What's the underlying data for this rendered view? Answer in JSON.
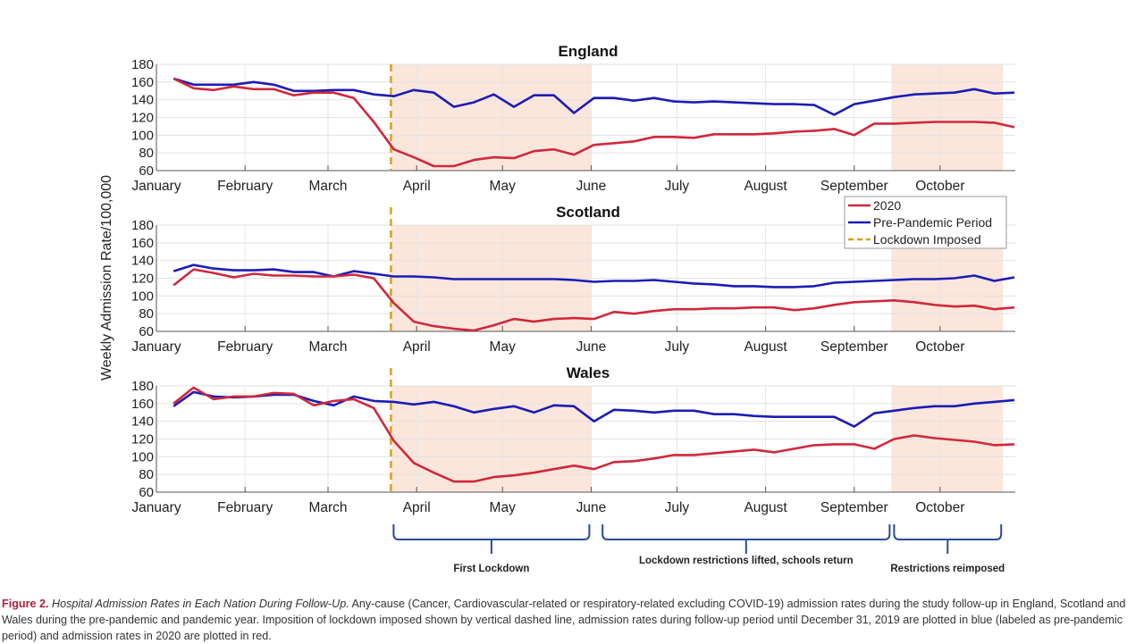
{
  "chart_data": {
    "type": "line",
    "ylabel": "Weekly Admission Rate/100,000",
    "x_tick_labels": [
      "January",
      "February",
      "March",
      "April",
      "May",
      "June",
      "July",
      "August",
      "September",
      "October"
    ],
    "x_tick_dates": [
      "2020-01-01",
      "2020-02-01",
      "2020-03-01",
      "2020-04-01",
      "2020-05-01",
      "2020-06-01",
      "2020-07-01",
      "2020-08-01",
      "2020-09-01",
      "2020-10-01"
    ],
    "xlim": [
      "2020-01-01",
      "2020-10-31"
    ],
    "ylim": [
      60,
      180
    ],
    "y_ticks": [
      60,
      80,
      100,
      120,
      140,
      160,
      180
    ],
    "grid": true,
    "legend": {
      "placement": "between England and Scotland panels, right",
      "entries": [
        "2020",
        "Pre-Pandemic Period",
        "Lockdown Imposed"
      ]
    },
    "colors": {
      "2020": "#d0283c",
      "pre_pandemic": "#1c1cb4",
      "lockdown": "#d8a020",
      "shading": "#fbe6dc"
    },
    "lockdown_date": "2020-03-23",
    "shaded_periods": [
      [
        "2020-03-23",
        "2020-06-01"
      ],
      [
        "2020-09-14",
        "2020-10-23"
      ]
    ],
    "x": [
      "2020-01-07",
      "2020-01-14",
      "2020-01-21",
      "2020-01-28",
      "2020-02-04",
      "2020-02-11",
      "2020-02-18",
      "2020-02-25",
      "2020-03-03",
      "2020-03-10",
      "2020-03-17",
      "2020-03-24",
      "2020-03-31",
      "2020-04-07",
      "2020-04-14",
      "2020-04-21",
      "2020-04-28",
      "2020-05-05",
      "2020-05-12",
      "2020-05-19",
      "2020-05-26",
      "2020-06-02",
      "2020-06-09",
      "2020-06-16",
      "2020-06-23",
      "2020-06-30",
      "2020-07-07",
      "2020-07-14",
      "2020-07-21",
      "2020-07-28",
      "2020-08-04",
      "2020-08-11",
      "2020-08-18",
      "2020-08-25",
      "2020-09-01",
      "2020-09-08",
      "2020-09-15",
      "2020-09-22",
      "2020-09-29",
      "2020-10-06",
      "2020-10-13",
      "2020-10-20",
      "2020-10-27"
    ],
    "panels": [
      {
        "title": "England",
        "series": [
          {
            "name": "2020",
            "values": [
              164,
              153,
              151,
              155,
              152,
              152,
              145,
              148,
              148,
              142,
              115,
              84,
              75,
              65,
              65,
              72,
              75,
              74,
              82,
              84,
              78,
              89,
              91,
              93,
              98,
              98,
              97,
              101,
              101,
              101,
              102,
              104,
              105,
              107,
              100,
              113,
              113,
              114,
              115,
              115,
              115,
              114,
              109
            ]
          },
          {
            "name": "Pre-Pandemic Period",
            "values": [
              164,
              157,
              157,
              157,
              160,
              157,
              150,
              150,
              151,
              151,
              146,
              144,
              151,
              148,
              132,
              137,
              146,
              132,
              145,
              145,
              125,
              142,
              142,
              139,
              142,
              138,
              137,
              138,
              137,
              136,
              135,
              135,
              134,
              123,
              135,
              139,
              143,
              146,
              147,
              148,
              152,
              147,
              148
            ]
          }
        ]
      },
      {
        "title": "Scotland",
        "series": [
          {
            "name": "2020",
            "values": [
              112,
              130,
              126,
              121,
              125,
              123,
              123,
              122,
              122,
              124,
              120,
              92,
              71,
              66,
              63,
              61,
              67,
              74,
              71,
              74,
              75,
              74,
              82,
              80,
              83,
              85,
              85,
              86,
              86,
              87,
              87,
              84,
              86,
              90,
              93,
              94,
              95,
              93,
              90,
              88,
              89,
              85,
              87
            ]
          },
          {
            "name": "Pre-Pandemic Period",
            "values": [
              128,
              135,
              131,
              129,
              129,
              130,
              127,
              127,
              122,
              128,
              125,
              122,
              122,
              121,
              119,
              119,
              119,
              119,
              119,
              119,
              118,
              116,
              117,
              117,
              118,
              116,
              114,
              113,
              111,
              111,
              110,
              110,
              111,
              115,
              116,
              117,
              118,
              119,
              119,
              120,
              123,
              117,
              121
            ]
          }
        ]
      },
      {
        "title": "Wales",
        "series": [
          {
            "name": "2020",
            "values": [
              160,
              178,
              165,
              168,
              168,
              172,
              171,
              158,
              163,
              165,
              155,
              118,
              93,
              82,
              72,
              72,
              77,
              79,
              82,
              86,
              90,
              86,
              94,
              95,
              98,
              102,
              102,
              104,
              106,
              108,
              105,
              109,
              113,
              114,
              114,
              109,
              120,
              124,
              121,
              119,
              117,
              113,
              114
            ]
          },
          {
            "name": "Pre-Pandemic Period",
            "values": [
              157,
              173,
              168,
              167,
              168,
              170,
              170,
              163,
              158,
              168,
              163,
              162,
              159,
              162,
              157,
              150,
              154,
              157,
              150,
              158,
              157,
              140,
              153,
              152,
              150,
              152,
              152,
              148,
              148,
              146,
              145,
              145,
              145,
              145,
              134,
              149,
              152,
              155,
              157,
              157,
              160,
              162,
              164
            ]
          }
        ]
      }
    ],
    "annotations": [
      {
        "label": "First Lockdown",
        "from": "2020-03-23",
        "to": "2020-06-01"
      },
      {
        "label": "Lockdown restrictions lifted, schools return",
        "from": "2020-06-05",
        "to": "2020-09-14"
      },
      {
        "label": "Restrictions reimposed",
        "from": "2020-09-14",
        "to": "2020-10-23"
      }
    ]
  },
  "caption": {
    "figure_label": "Figure 2.",
    "title": "Hospital Admission Rates in Each Nation During Follow-Up.",
    "body": "Any-cause (Cancer, Cardiovascular-related or respiratory-related excluding COVID-19) admission rates during the study follow-up in England, Scotland and Wales during the pre-pandemic and pandemic year. Imposition of lockdown imposed shown by vertical dashed line, admission rates during follow-up period until December 31, 2019 are plotted in blue (labeled as pre-pandemic period) and admission rates in 2020 are plotted in red."
  }
}
